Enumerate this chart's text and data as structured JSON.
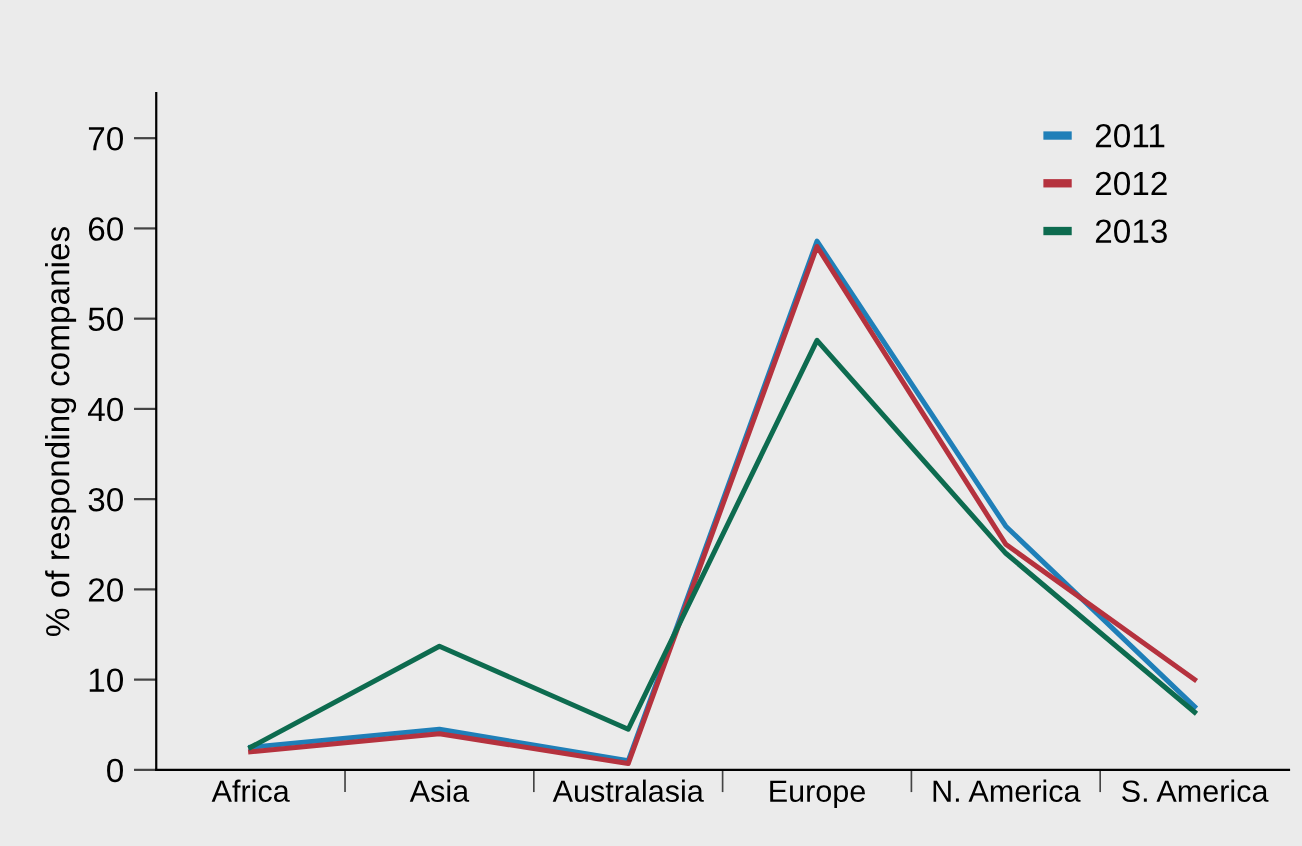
{
  "chart_data": {
    "type": "line",
    "ylabel": "% of responding companies",
    "categories": [
      "Africa",
      "Asia",
      "Australasia",
      "Europe",
      "N. America",
      "S. America"
    ],
    "series": [
      {
        "name": "2011",
        "color": "#1f7fb8",
        "values": [
          2.5,
          4.5,
          1,
          58.6,
          27,
          7
        ]
      },
      {
        "name": "2012",
        "color": "#b5323e",
        "values": [
          2,
          4,
          0.7,
          58,
          25,
          10
        ]
      },
      {
        "name": "2013",
        "color": "#0d6b4f",
        "values": [
          2.5,
          13.7,
          4.5,
          47.6,
          24,
          6.4
        ]
      }
    ],
    "ylim": [
      0,
      75
    ],
    "yticks": [
      0,
      10,
      20,
      30,
      40,
      50,
      60,
      70
    ],
    "grid": false,
    "legend": "top right",
    "marker": "none",
    "line_style": "solid"
  }
}
